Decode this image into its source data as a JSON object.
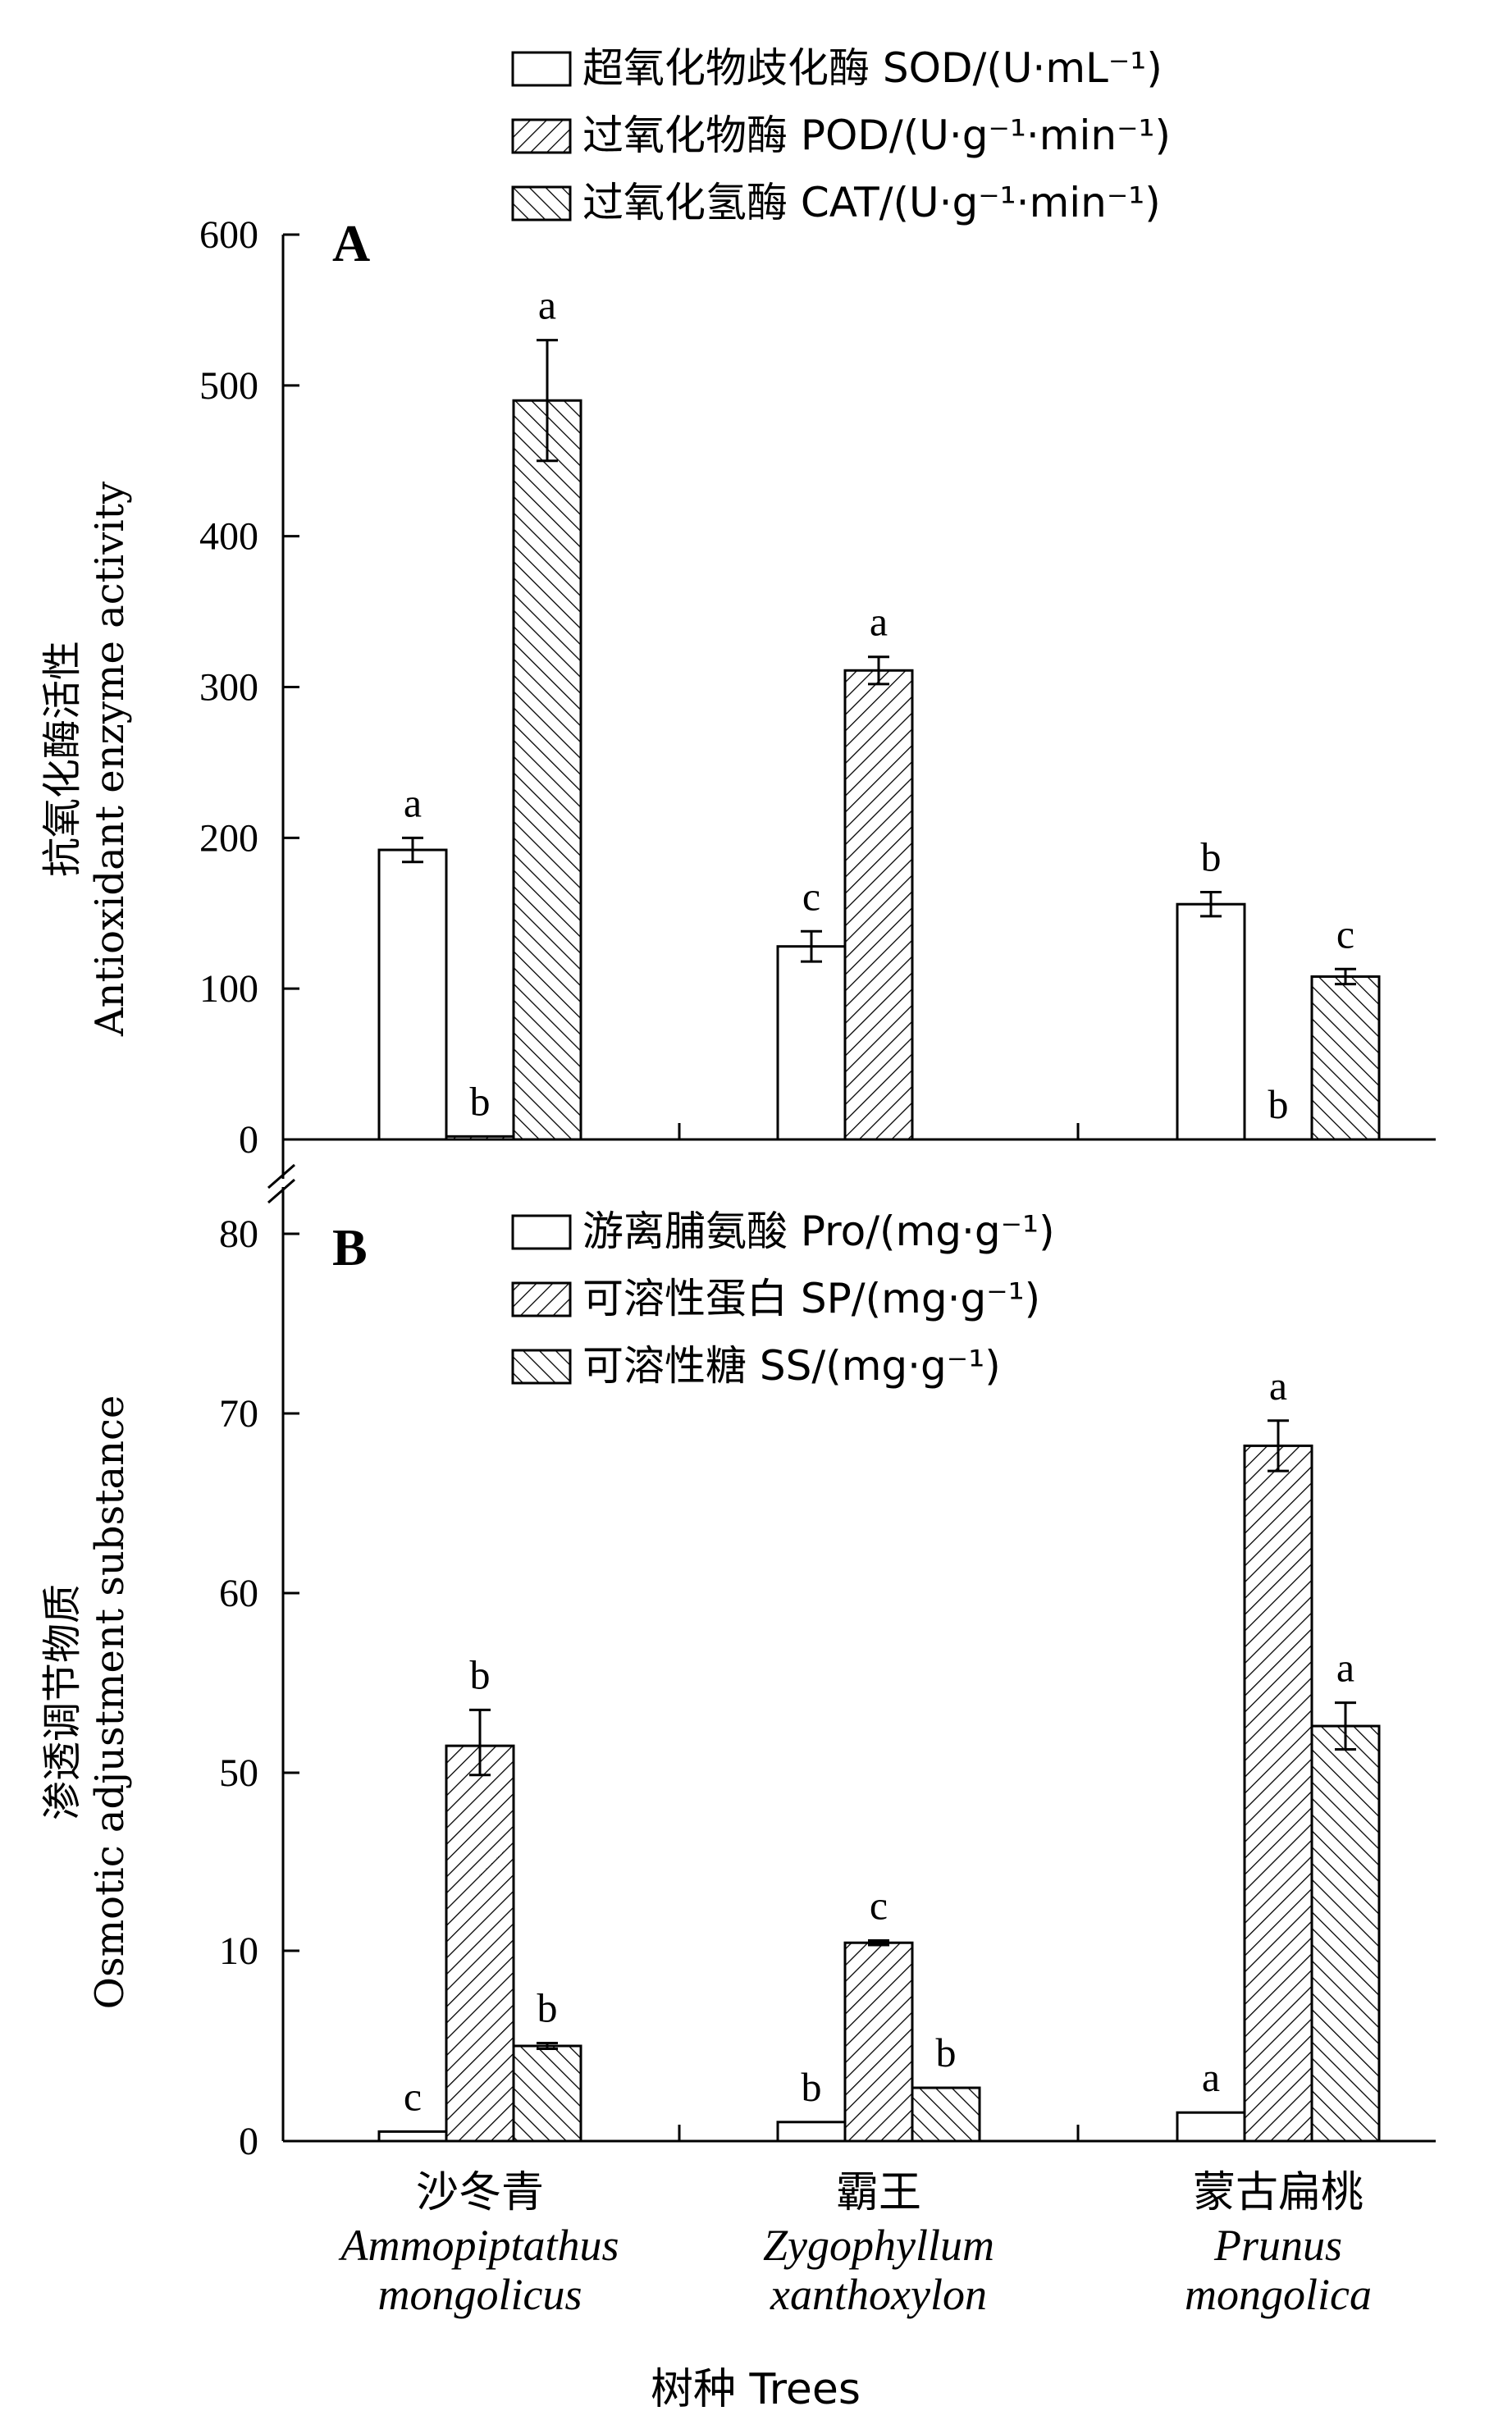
{
  "chart_data": [
    {
      "panel": "A",
      "type": "bar",
      "categories": [
        "沙冬青",
        "霸王",
        "蒙古扁桃"
      ],
      "ylabel_cn": "抗氧化酶活性",
      "ylabel_en": "Antioxidant enzyme activity",
      "ylim": [
        0,
        600
      ],
      "yticks": [
        0,
        100,
        200,
        300,
        400,
        500,
        600
      ],
      "legend_position": "top-right",
      "series": [
        {
          "name": "超氧化物歧化酶 SOD/(U·mL⁻¹)",
          "pattern": "open",
          "values": [
            192,
            128,
            156
          ],
          "errors": [
            8,
            10,
            8
          ],
          "letters": [
            "a",
            "c",
            "b"
          ]
        },
        {
          "name": "过氧化物酶 POD/(U·g⁻¹·min⁻¹)",
          "pattern": "hatch-right",
          "values": [
            2,
            311,
            0
          ],
          "errors": [
            0,
            9,
            0
          ],
          "letters": [
            "b",
            "a",
            "b"
          ]
        },
        {
          "name": "过氧化氢酶 CAT/(U·g⁻¹·min⁻¹)",
          "pattern": "hatch-left",
          "values": [
            490,
            0,
            108
          ],
          "errors": [
            40,
            0,
            5
          ],
          "letters": [
            "a",
            "",
            "c"
          ]
        }
      ]
    },
    {
      "panel": "B",
      "type": "bar",
      "categories": [
        "沙冬青",
        "霸王",
        "蒙古扁桃"
      ],
      "ylabel_cn": "渗透调节物质",
      "ylabel_en": "Osmotic adjustment substance",
      "ylim": [
        0,
        80
      ],
      "yticks": [
        0,
        10,
        50,
        60,
        70,
        80
      ],
      "axis_break": "broken scale between 10 and 50",
      "legend_position": "top-center",
      "series": [
        {
          "name": "游离脯氨酸 Pro/(mg·g⁻¹)",
          "pattern": "open",
          "values": [
            0.5,
            1.0,
            1.5
          ],
          "errors": [
            0,
            0,
            0
          ],
          "letters": [
            "c",
            "b",
            "a"
          ]
        },
        {
          "name": "可溶性蛋白 SP/(mg·g⁻¹)",
          "pattern": "hatch-right",
          "values": [
            51.5,
            11.8,
            68.2
          ],
          "errors": [
            2.0,
            0.5,
            1.4
          ],
          "letters": [
            "b",
            "c",
            "a"
          ]
        },
        {
          "name": "可溶性糖 SS/(mg·g⁻¹)",
          "pattern": "hatch-left",
          "values": [
            5.0,
            2.8,
            52.6
          ],
          "errors": [
            0.15,
            0,
            1.3
          ],
          "letters": [
            "b",
            "b",
            "a"
          ]
        }
      ]
    }
  ],
  "xaxis": {
    "categories_cn": [
      "沙冬青",
      "霸王",
      "蒙古扁桃"
    ],
    "categories_latin": [
      [
        "Ammopiptathus",
        "mongolicus"
      ],
      [
        "Zygophyllum",
        "xanthoxylon"
      ],
      [
        "Prunus",
        "mongolica"
      ]
    ],
    "title": "树种 Trees"
  }
}
